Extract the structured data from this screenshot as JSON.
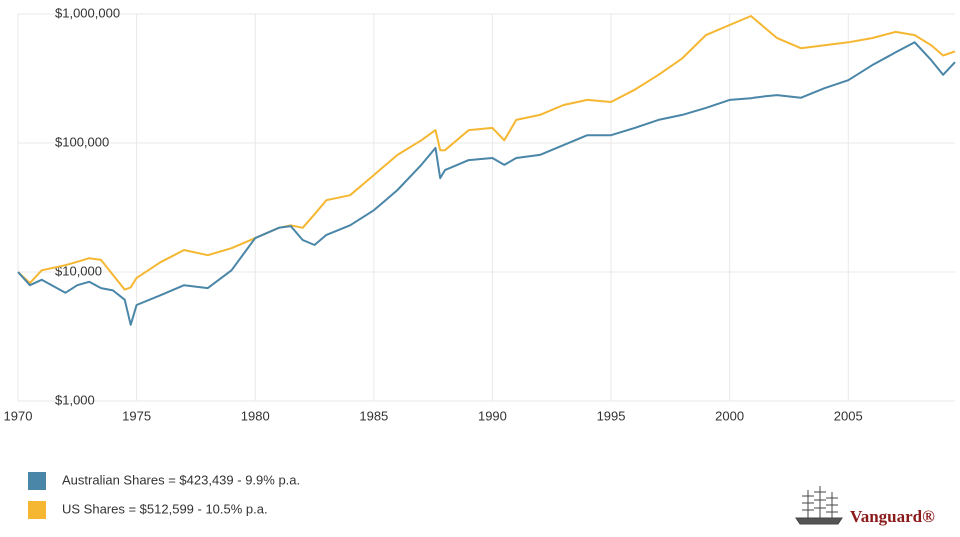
{
  "chart_data": {
    "type": "line",
    "log_scale": true,
    "grid": true,
    "x": [
      1970,
      1970.5,
      1971,
      1972,
      1972.5,
      1973,
      1973.5,
      1974,
      1974.5,
      1974.75,
      1975,
      1976,
      1977,
      1978,
      1979,
      1980,
      1981,
      1981.5,
      1982,
      1982.5,
      1983,
      1984,
      1985,
      1986,
      1987,
      1987.6,
      1987.8,
      1988,
      1989,
      1990,
      1990.5,
      1991,
      1992,
      1993,
      1994,
      1995,
      1996,
      1997,
      1998,
      1999,
      2000,
      2000.9,
      2001,
      2001.5,
      2002,
      2003,
      2004,
      2005,
      2006,
      2007,
      2007.8,
      2008.5,
      2009,
      2009.5
    ],
    "series": [
      {
        "name": "Australian Shares = $423,439 - 9.9% p.a.",
        "color": "#4a86a8",
        "values": [
          10000,
          7900,
          8700,
          6900,
          7900,
          8400,
          7500,
          7200,
          6100,
          3900,
          5550,
          6600,
          7900,
          7500,
          10300,
          18300,
          22000,
          22700,
          17700,
          16200,
          19400,
          23000,
          30100,
          43200,
          67600,
          91600,
          53400,
          61700,
          73700,
          76500,
          67600,
          76500,
          80800,
          96400,
          115000,
          115000,
          131000,
          151000,
          165000,
          187000,
          216000,
          222000,
          224000,
          230000,
          235000,
          224000,
          266000,
          307000,
          400000,
          505000,
          603000,
          438000,
          338000,
          423000
        ]
      },
      {
        "name": "US Shares = $512,599 - 10.5% p.a.",
        "color": "#f5b731",
        "values": [
          10000,
          8200,
          10300,
          11300,
          12000,
          12800,
          12400,
          9500,
          7300,
          7600,
          9000,
          11900,
          14800,
          13500,
          15300,
          18300,
          22000,
          23000,
          22000,
          28000,
          36000,
          39400,
          56400,
          80800,
          105000,
          126000,
          88000,
          88000,
          126000,
          131000,
          105000,
          151000,
          165000,
          197000,
          216000,
          208000,
          259000,
          338000,
          453000,
          686000,
          822000,
          965000,
          930000,
          778000,
          650000,
          543000,
          572000,
          603000,
          650000,
          726000,
          686000,
          572000,
          477000,
          513000
        ]
      }
    ],
    "xlim": [
      1970,
      2009.5
    ],
    "xticks": [
      1970,
      1975,
      1980,
      1985,
      1990,
      1995,
      2000,
      2005
    ],
    "ylim": [
      1000,
      1000000
    ],
    "yticks": [
      {
        "value": 1000,
        "label": "$1,000"
      },
      {
        "value": 10000,
        "label": "$10,000"
      },
      {
        "value": 100000,
        "label": "$100,000"
      },
      {
        "value": 1000000,
        "label": "$1,000,000"
      }
    ],
    "logo": "Vanguard®"
  }
}
